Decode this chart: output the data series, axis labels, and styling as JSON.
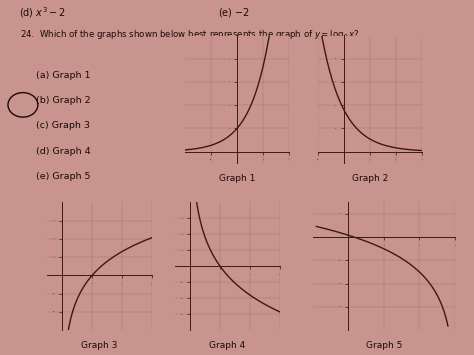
{
  "background_color": "#c9948e",
  "curve_color": "#3a1a10",
  "axis_color": "#3a1a10",
  "text_color": "#1a0a05",
  "label_fontsize": 6.5,
  "graph_labels": [
    "Graph 1",
    "Graph 2",
    "Graph 3",
    "Graph 4",
    "Graph 5"
  ],
  "header_left": "(d) $x^3 - 2$",
  "header_right": "(e) $-2$",
  "question": "24.  Which of the graphs shown below best represents the graph of $y = \\log_2 x$?",
  "options": [
    "(a) Graph 1",
    "(b) Graph 2",
    "(c) Graph 3",
    "(d) Graph 4",
    "(e) Graph 5"
  ]
}
